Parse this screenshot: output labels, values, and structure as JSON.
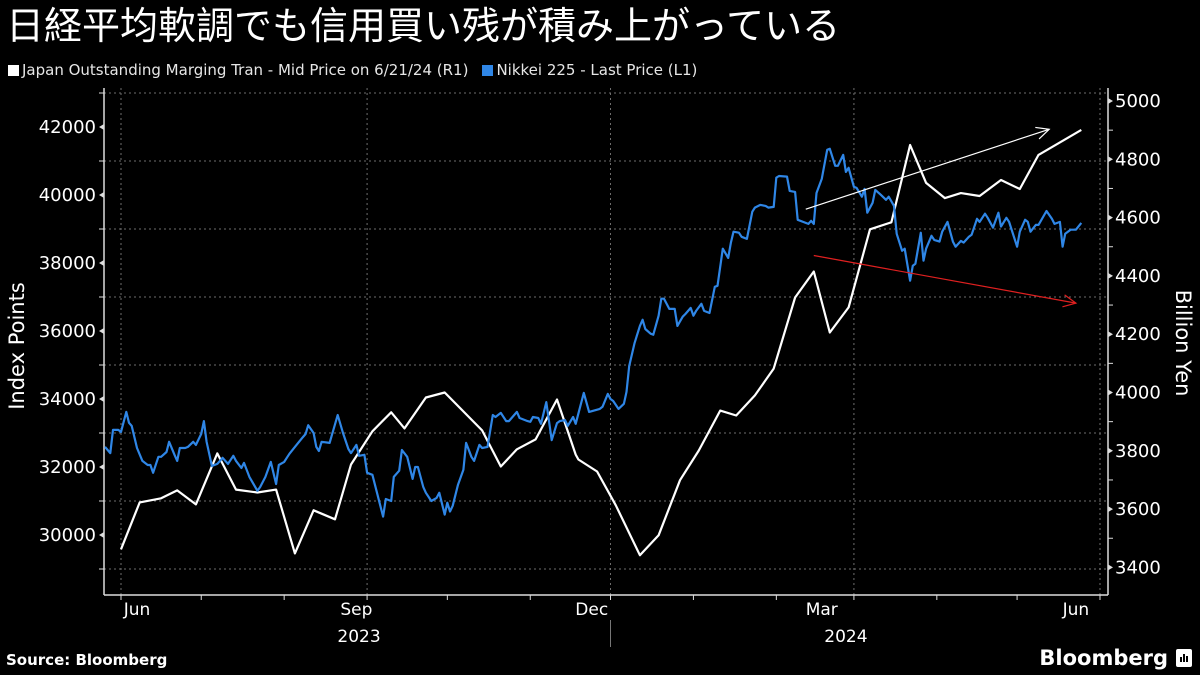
{
  "title": "日経平均軟調でも信用買い残が積み上がっている",
  "legend": [
    {
      "label": "Japan Outstanding Marging Tran - Mid Price on 6/21/24 (R1)",
      "color": "#ffffff"
    },
    {
      "label": "Nikkei 225 - Last Price (L1)",
      "color": "#2f86e6"
    }
  ],
  "footer": {
    "source": "Source: Bloomberg",
    "brand": "Bloomberg"
  },
  "chart_data": {
    "type": "line",
    "title": "日経平均軟調でも信用買い残が積み上がっている",
    "x_axis": {
      "month_labels": [
        {
          "label": "Jun",
          "day": 0
        },
        {
          "label": "Sep",
          "day": 82
        },
        {
          "label": "Dec",
          "day": 170
        },
        {
          "label": "Mar",
          "day": 256
        },
        {
          "label": "Jun",
          "day": 351
        }
      ],
      "year_labels": [
        {
          "label": "2023",
          "day": 89
        },
        {
          "label": "2024",
          "day": 271
        }
      ],
      "month_ticks_days": [
        0,
        30,
        61,
        92,
        122,
        153,
        183,
        214,
        245,
        274,
        305,
        335,
        366
      ],
      "gridline_days": [
        0,
        92,
        183,
        274,
        366
      ],
      "range_days": [
        -6,
        370
      ],
      "day0": "2023-06-01"
    },
    "left_axis": {
      "label": "Index Points",
      "ylim": [
        28500,
        43000
      ],
      "ticks": [
        30000,
        32000,
        34000,
        36000,
        38000,
        40000,
        42000
      ],
      "minor": [
        29000,
        31000,
        33000,
        35000,
        37000,
        39000,
        41000,
        43000
      ]
    },
    "right_axis": {
      "label": "Billion Yen",
      "ylim": [
        3300,
        5050
      ],
      "ticks": [
        3400,
        3600,
        3800,
        4000,
        4200,
        4400,
        4600,
        4800,
        5000
      ],
      "minor": [
        3500,
        3700,
        3900,
        4100,
        4300,
        4500,
        4700,
        4900
      ]
    },
    "grid": true,
    "series": [
      {
        "name": "Japan Outstanding Marging Tran - Mid Price on 6/21/24 (R1)",
        "axis": "right",
        "color": "#ffffff",
        "points": [
          [
            0,
            3462
          ],
          [
            7,
            3623
          ],
          [
            15,
            3637
          ],
          [
            21,
            3664
          ],
          [
            28,
            3616
          ],
          [
            36,
            3791
          ],
          [
            43,
            3667
          ],
          [
            51,
            3657
          ],
          [
            58,
            3667
          ],
          [
            65,
            3448
          ],
          [
            72,
            3596
          ],
          [
            80,
            3565
          ],
          [
            86,
            3753
          ],
          [
            94,
            3867
          ],
          [
            101,
            3932
          ],
          [
            106,
            3877
          ],
          [
            114,
            3983
          ],
          [
            121,
            4000
          ],
          [
            135,
            3870
          ],
          [
            142,
            3746
          ],
          [
            148,
            3805
          ],
          [
            155,
            3839
          ],
          [
            163,
            3976
          ],
          [
            170,
            3787
          ],
          [
            171,
            3770
          ],
          [
            178,
            3729
          ],
          [
            185,
            3613
          ],
          [
            194,
            3442
          ],
          [
            201,
            3510
          ],
          [
            209,
            3699
          ],
          [
            216,
            3801
          ],
          [
            224,
            3938
          ],
          [
            230,
            3921
          ],
          [
            237,
            3990
          ],
          [
            244,
            4082
          ],
          [
            252,
            4326
          ],
          [
            259,
            4415
          ],
          [
            265,
            4206
          ],
          [
            272,
            4292
          ],
          [
            280,
            4560
          ],
          [
            288,
            4584
          ],
          [
            295,
            4849
          ],
          [
            301,
            4719
          ],
          [
            308,
            4667
          ],
          [
            314,
            4684
          ],
          [
            321,
            4674
          ],
          [
            329,
            4729
          ],
          [
            336,
            4698
          ],
          [
            343,
            4815
          ],
          [
            359,
            4901
          ]
        ]
      },
      {
        "name": "Nikkei 225 - Last Price (L1)",
        "axis": "left",
        "color": "#2f86e6",
        "points": [
          [
            -6,
            32590
          ],
          [
            -4,
            32410
          ],
          [
            -3,
            33090
          ],
          [
            -1,
            33090
          ],
          [
            0,
            33030
          ],
          [
            2,
            33620
          ],
          [
            3,
            33300
          ],
          [
            4,
            33210
          ],
          [
            6,
            32560
          ],
          [
            8,
            32180
          ],
          [
            10,
            32060
          ],
          [
            11,
            32060
          ],
          [
            12,
            31830
          ],
          [
            14,
            32300
          ],
          [
            15,
            32300
          ],
          [
            17,
            32440
          ],
          [
            18,
            32740
          ],
          [
            20,
            32360
          ],
          [
            21,
            32180
          ],
          [
            22,
            32560
          ],
          [
            24,
            32560
          ],
          [
            25,
            32590
          ],
          [
            27,
            32740
          ],
          [
            28,
            32650
          ],
          [
            30,
            32970
          ],
          [
            31,
            33350
          ],
          [
            32,
            32740
          ],
          [
            34,
            32030
          ],
          [
            36,
            32090
          ],
          [
            37,
            32180
          ],
          [
            38,
            32270
          ],
          [
            40,
            32090
          ],
          [
            42,
            32330
          ],
          [
            43,
            32180
          ],
          [
            45,
            31970
          ],
          [
            46,
            32120
          ],
          [
            48,
            31710
          ],
          [
            51,
            31300
          ],
          [
            52,
            31410
          ],
          [
            54,
            31710
          ],
          [
            56,
            32150
          ],
          [
            58,
            31500
          ],
          [
            59,
            32060
          ],
          [
            61,
            32150
          ],
          [
            62,
            32270
          ],
          [
            63,
            32390
          ],
          [
            65,
            32590
          ],
          [
            68,
            32880
          ],
          [
            69,
            32970
          ],
          [
            70,
            33230
          ],
          [
            72,
            33000
          ],
          [
            73,
            32590
          ],
          [
            74,
            32470
          ],
          [
            75,
            32740
          ],
          [
            78,
            32710
          ],
          [
            81,
            33530
          ],
          [
            83,
            33000
          ],
          [
            85,
            32530
          ],
          [
            86,
            32410
          ],
          [
            88,
            32650
          ],
          [
            89,
            32330
          ],
          [
            91,
            32360
          ],
          [
            92,
            31830
          ],
          [
            94,
            31770
          ],
          [
            98,
            30540
          ],
          [
            99,
            31060
          ],
          [
            101,
            31000
          ],
          [
            102,
            31710
          ],
          [
            104,
            31890
          ],
          [
            105,
            32500
          ],
          [
            107,
            32300
          ],
          [
            109,
            31650
          ],
          [
            110,
            32000
          ],
          [
            111,
            32000
          ],
          [
            113,
            31410
          ],
          [
            114,
            31240
          ],
          [
            116,
            31000
          ],
          [
            118,
            31090
          ],
          [
            119,
            31240
          ],
          [
            121,
            30600
          ],
          [
            122,
            30950
          ],
          [
            123,
            30690
          ],
          [
            124,
            30860
          ],
          [
            126,
            31480
          ],
          [
            128,
            31920
          ],
          [
            129,
            32710
          ],
          [
            131,
            32300
          ],
          [
            132,
            32180
          ],
          [
            134,
            32650
          ],
          [
            135,
            32560
          ],
          [
            137,
            32590
          ],
          [
            139,
            33530
          ],
          [
            140,
            33470
          ],
          [
            142,
            33590
          ],
          [
            144,
            33350
          ],
          [
            145,
            33350
          ],
          [
            148,
            33620
          ],
          [
            149,
            33440
          ],
          [
            152,
            33350
          ],
          [
            153,
            33330
          ],
          [
            154,
            33470
          ],
          [
            156,
            33440
          ],
          [
            157,
            33270
          ],
          [
            159,
            33910
          ],
          [
            161,
            32790
          ],
          [
            163,
            33290
          ],
          [
            164,
            33350
          ],
          [
            166,
            33380
          ],
          [
            167,
            33210
          ],
          [
            169,
            33470
          ],
          [
            170,
            33270
          ],
          [
            173,
            34180
          ],
          [
            175,
            33620
          ],
          [
            179,
            33710
          ],
          [
            180,
            33770
          ],
          [
            182,
            34150
          ],
          [
            183,
            34000
          ],
          [
            184,
            33940
          ],
          [
            186,
            33710
          ],
          [
            188,
            33860
          ],
          [
            189,
            34210
          ],
          [
            190,
            34970
          ],
          [
            192,
            35650
          ],
          [
            194,
            36150
          ],
          [
            195,
            36330
          ],
          [
            196,
            36060
          ],
          [
            198,
            35920
          ],
          [
            199,
            35890
          ],
          [
            201,
            36450
          ],
          [
            202,
            36950
          ],
          [
            203,
            36950
          ],
          [
            205,
            36650
          ],
          [
            207,
            36650
          ],
          [
            208,
            36150
          ],
          [
            210,
            36420
          ],
          [
            211,
            36500
          ],
          [
            213,
            36680
          ],
          [
            214,
            36450
          ],
          [
            215,
            36590
          ],
          [
            217,
            36800
          ],
          [
            218,
            36590
          ],
          [
            220,
            36530
          ],
          [
            222,
            37300
          ],
          [
            223,
            37330
          ],
          [
            225,
            38420
          ],
          [
            227,
            38150
          ],
          [
            228,
            38600
          ],
          [
            229,
            38920
          ],
          [
            231,
            38890
          ],
          [
            232,
            38770
          ],
          [
            234,
            38710
          ],
          [
            236,
            39510
          ],
          [
            237,
            39630
          ],
          [
            239,
            39710
          ],
          [
            241,
            39680
          ],
          [
            242,
            39630
          ],
          [
            244,
            39650
          ],
          [
            245,
            40510
          ],
          [
            246,
            40560
          ],
          [
            249,
            40540
          ],
          [
            250,
            40120
          ],
          [
            252,
            40090
          ],
          [
            253,
            39270
          ],
          [
            255,
            39210
          ],
          [
            257,
            39150
          ],
          [
            258,
            39240
          ],
          [
            259,
            39150
          ],
          [
            260,
            40060
          ],
          [
            262,
            40480
          ],
          [
            264,
            41330
          ],
          [
            265,
            41360
          ],
          [
            267,
            40860
          ],
          [
            268,
            40860
          ],
          [
            270,
            41180
          ],
          [
            271,
            40680
          ],
          [
            272,
            40800
          ],
          [
            274,
            40240
          ],
          [
            275,
            40210
          ],
          [
            277,
            39950
          ],
          [
            278,
            40180
          ],
          [
            279,
            39480
          ],
          [
            281,
            39770
          ],
          [
            282,
            40150
          ],
          [
            284,
            40010
          ],
          [
            286,
            39860
          ],
          [
            287,
            39950
          ],
          [
            289,
            39680
          ],
          [
            290,
            38860
          ],
          [
            292,
            38360
          ],
          [
            293,
            38420
          ],
          [
            295,
            37480
          ],
          [
            296,
            37920
          ],
          [
            297,
            37980
          ],
          [
            299,
            38890
          ],
          [
            300,
            38070
          ],
          [
            301,
            38420
          ],
          [
            303,
            38800
          ],
          [
            304,
            38680
          ],
          [
            306,
            38630
          ],
          [
            307,
            38920
          ],
          [
            309,
            39210
          ],
          [
            311,
            38630
          ],
          [
            312,
            38480
          ],
          [
            314,
            38650
          ],
          [
            315,
            38600
          ],
          [
            317,
            38770
          ],
          [
            318,
            38830
          ],
          [
            320,
            39300
          ],
          [
            321,
            39210
          ],
          [
            323,
            39450
          ],
          [
            324,
            39330
          ],
          [
            326,
            39040
          ],
          [
            328,
            39480
          ],
          [
            329,
            39070
          ],
          [
            331,
            39330
          ],
          [
            332,
            39210
          ],
          [
            335,
            38480
          ],
          [
            336,
            38920
          ],
          [
            338,
            39270
          ],
          [
            339,
            39210
          ],
          [
            340,
            38920
          ],
          [
            342,
            39120
          ],
          [
            343,
            39120
          ],
          [
            346,
            39530
          ],
          [
            348,
            39300
          ],
          [
            349,
            39150
          ],
          [
            351,
            39210
          ],
          [
            352,
            38480
          ],
          [
            353,
            38860
          ],
          [
            355,
            38980
          ],
          [
            357,
            38980
          ],
          [
            359,
            39180
          ]
        ]
      }
    ],
    "annotations": [
      {
        "type": "arrow",
        "color": "#ffffff",
        "from": [
          256,
          4629
        ],
        "to": [
          347,
          4903
        ],
        "note": "white trend arrow (rising margin balance)"
      },
      {
        "type": "arrow",
        "color": "#e02020",
        "from": [
          259,
          38220
        ],
        "to": [
          357,
          36820
        ],
        "note": "red trend arrow (falling Nikkei)"
      }
    ]
  }
}
